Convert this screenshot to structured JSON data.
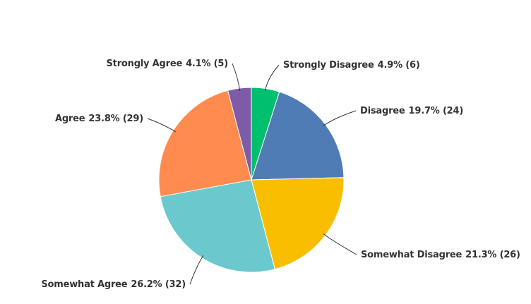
{
  "chart_data": {
    "type": "pie",
    "categories": [
      "Strongly Disagree",
      "Disagree",
      "Somewhat Disagree",
      "Somewhat Agree",
      "Agree",
      "Strongly Agree"
    ],
    "values": [
      4.9,
      19.7,
      21.3,
      26.2,
      23.8,
      4.1
    ],
    "value_labels": [
      "4.9% (6)",
      "19.7% (24)",
      "21.3% (26)",
      "26.2% (32)",
      "23.8% (29)",
      "4.1% (5)"
    ],
    "colors": [
      "#00bf6f",
      "#507cb6",
      "#f9be00",
      "#6bc8cd",
      "#ff8b4f",
      "#7d5ba6"
    ]
  }
}
